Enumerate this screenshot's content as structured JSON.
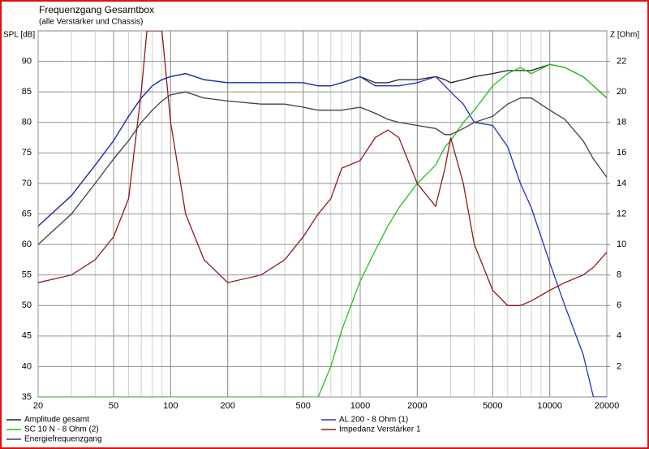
{
  "chart_data": {
    "type": "line",
    "title": "Frequenzgang Gesamtbox",
    "subtitle": "(alle Verstärker und Chassis)",
    "y_label": "SPL [dB]",
    "y2_label": "Z [Ohm]",
    "log_x": true,
    "grid": true,
    "xlim": [
      20,
      20000
    ],
    "xticks": [
      20,
      50,
      100,
      200,
      500,
      1000,
      2000,
      5000,
      10000,
      20000
    ],
    "ylim": [
      35,
      95
    ],
    "yticks": [
      35,
      40,
      45,
      50,
      55,
      60,
      65,
      70,
      75,
      80,
      85,
      90
    ],
    "y2lim": [
      0,
      24
    ],
    "y2ticks": [
      2,
      4,
      6,
      8,
      10,
      12,
      14,
      16,
      18,
      20,
      22
    ],
    "x": [
      20,
      30,
      40,
      50,
      60,
      70,
      75,
      80,
      90,
      100,
      120,
      150,
      200,
      300,
      400,
      500,
      600,
      700,
      800,
      1000,
      1200,
      1400,
      1600,
      2000,
      2500,
      2800,
      3000,
      3500,
      4000,
      5000,
      6000,
      7000,
      8000,
      10000,
      12000,
      15000,
      17000,
      20000
    ],
    "series": [
      {
        "name": "Amplitude gesamt",
        "color": "#202020",
        "values": [
          63,
          68,
          73,
          77,
          81,
          84,
          85,
          86,
          87,
          87.5,
          88,
          87,
          86.5,
          86.5,
          86.5,
          86.5,
          86,
          86,
          86.5,
          87.5,
          86.5,
          86.5,
          87,
          87,
          87.5,
          87,
          86.5,
          87,
          87.5,
          88,
          88.5,
          88.5,
          88.5,
          89.5,
          89,
          87.5,
          86,
          84
        ]
      },
      {
        "name": "AL 200 - 8 Ohm (1)",
        "color": "#2030c0",
        "values": [
          63,
          68,
          73,
          77,
          81,
          84,
          85,
          86,
          87,
          87.5,
          88,
          87,
          86.5,
          86.5,
          86.5,
          86.5,
          86,
          86,
          86.5,
          87.5,
          86,
          86,
          86,
          86.5,
          87.5,
          86,
          85,
          83,
          80,
          79.5,
          76,
          70,
          66,
          57,
          50,
          42,
          35,
          35
        ]
      },
      {
        "name": "SC 10 N - 8 Ohm (2)",
        "color": "#20c020",
        "values": [
          35,
          35,
          35,
          35,
          35,
          35,
          35,
          35,
          35,
          35,
          35,
          35,
          35,
          35,
          35,
          35,
          35,
          40,
          46,
          54,
          59,
          63,
          66,
          70,
          73,
          76,
          77,
          80,
          82,
          86,
          88,
          89,
          88,
          89.5,
          89,
          87.5,
          86,
          84
        ]
      },
      {
        "name": "Impedanz Verstärker 1",
        "color": "#8b1a1a",
        "axis": "y2",
        "values": [
          7.5,
          8,
          9,
          10.5,
          13,
          20,
          24,
          24,
          24,
          18,
          12,
          9,
          7.5,
          8,
          9,
          10.5,
          12,
          13,
          15,
          15.5,
          17,
          17.5,
          17,
          14,
          12.5,
          15,
          17,
          14,
          10,
          7,
          6,
          6,
          6.3,
          7,
          7.5,
          8,
          8.5,
          9.5
        ]
      },
      {
        "name": "Energiefrequenzgang",
        "color": "#404040",
        "values": [
          60,
          65,
          70,
          74,
          77,
          80,
          81,
          82,
          83.5,
          84.5,
          85,
          84,
          83.5,
          83,
          83,
          82.5,
          82,
          82,
          82,
          82.5,
          81.5,
          80.5,
          80,
          79.5,
          79,
          78,
          78,
          79,
          80,
          81,
          83,
          84,
          84,
          82,
          80.5,
          77,
          74,
          71
        ]
      }
    ]
  }
}
